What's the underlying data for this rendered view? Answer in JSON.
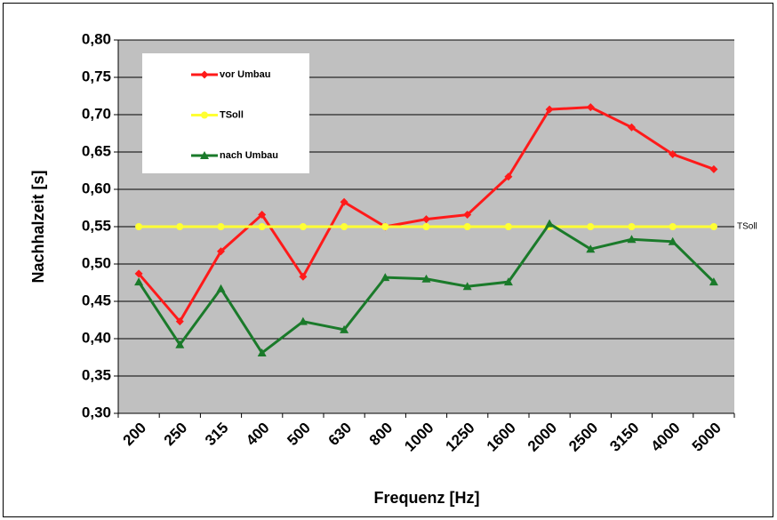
{
  "chart_data": {
    "type": "line",
    "xlabel": "Frequenz  [Hz]",
    "ylabel": "Nachhalzeit [s]",
    "annotation": "TSoll",
    "categories": [
      "200",
      "250",
      "315",
      "400",
      "500",
      "630",
      "800",
      "1000",
      "1250",
      "1600",
      "2000",
      "2500",
      "3150",
      "4000",
      "5000"
    ],
    "series": [
      {
        "name": "vor Umbau",
        "color": "#ff1a1a",
        "marker": "diamond",
        "values": [
          0.487,
          0.423,
          0.517,
          0.566,
          0.483,
          0.583,
          0.55,
          0.56,
          0.566,
          0.617,
          0.707,
          0.71,
          0.683,
          0.647,
          0.627
        ]
      },
      {
        "name": "TSoll",
        "color": "#ffff33",
        "marker": "circle",
        "values": [
          0.55,
          0.55,
          0.55,
          0.55,
          0.55,
          0.55,
          0.55,
          0.55,
          0.55,
          0.55,
          0.55,
          0.55,
          0.55,
          0.55,
          0.55
        ]
      },
      {
        "name": "nach Umbau",
        "color": "#1a7a2a",
        "marker": "triangle",
        "values": [
          0.476,
          0.392,
          0.467,
          0.381,
          0.423,
          0.412,
          0.482,
          0.48,
          0.47,
          0.476,
          0.554,
          0.52,
          0.533,
          0.53,
          0.476
        ]
      }
    ],
    "ylim": [
      0.3,
      0.8
    ],
    "yticks": [
      {
        "value": 0.3,
        "label": "0,30"
      },
      {
        "value": 0.35,
        "label": "0,35"
      },
      {
        "value": 0.4,
        "label": "0,40"
      },
      {
        "value": 0.45,
        "label": "0,45"
      },
      {
        "value": 0.5,
        "label": "0,50"
      },
      {
        "value": 0.55,
        "label": "0,55"
      },
      {
        "value": 0.6,
        "label": "0,60"
      },
      {
        "value": 0.65,
        "label": "0,65"
      },
      {
        "value": 0.7,
        "label": "0,70"
      },
      {
        "value": 0.75,
        "label": "0,75"
      },
      {
        "value": 0.8,
        "label": "0,80"
      }
    ],
    "grid": true,
    "plot_background": "#c0c0c0",
    "legend": "upper left"
  }
}
